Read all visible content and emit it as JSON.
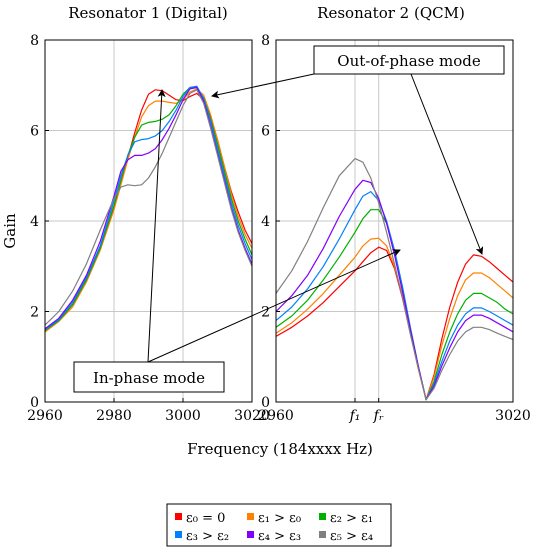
{
  "figure": {
    "ylabel": "Gain",
    "xlabel": "Frequency (184xxxx Hz)",
    "annotations": {
      "in_phase": "In-phase mode",
      "out_of_phase": "Out-of-phase mode"
    }
  },
  "legend": {
    "placement": "bottom-center",
    "entries": [
      {
        "label": "ε₀ = 0",
        "color": "#ff0000"
      },
      {
        "label": "ε₁ > ε₀",
        "color": "#ff8000"
      },
      {
        "label": "ε₂ > ε₁",
        "color": "#00b000"
      },
      {
        "label": "ε₃ > ε₂",
        "color": "#0080ff"
      },
      {
        "label": "ε₄ > ε₃",
        "color": "#8000ff"
      },
      {
        "label": "ε₅ > ε₄",
        "color": "#808080"
      }
    ]
  },
  "chart_data": [
    {
      "type": "line",
      "title": "Resonator 1 (Digital)",
      "xlim": [
        2960,
        3020
      ],
      "ylim": [
        0,
        8
      ],
      "grid": true,
      "xticks": [
        2960,
        2980,
        3000,
        3020
      ],
      "xtick_labels": [
        "2960",
        "2980",
        "3000",
        "3020"
      ],
      "yticks": [
        0,
        2,
        4,
        6,
        8
      ],
      "ytick_labels": [
        "0",
        "2",
        "4",
        "6",
        "8"
      ],
      "x": [
        2960,
        2964,
        2968,
        2972,
        2976,
        2980,
        2982,
        2984,
        2986,
        2988,
        2990,
        2992,
        2994,
        2996,
        2998,
        3000,
        3002,
        3004,
        3006,
        3008,
        3010,
        3012,
        3014,
        3016,
        3018,
        3020
      ],
      "series": [
        {
          "values": [
            1.55,
            1.8,
            2.15,
            2.7,
            3.4,
            4.3,
            4.85,
            5.4,
            5.95,
            6.45,
            6.8,
            6.9,
            6.88,
            6.78,
            6.68,
            6.66,
            6.75,
            6.82,
            6.68,
            6.3,
            5.8,
            5.2,
            4.65,
            4.2,
            3.8,
            3.5
          ]
        },
        {
          "values": [
            1.55,
            1.78,
            2.1,
            2.65,
            3.35,
            4.25,
            4.8,
            5.35,
            5.85,
            6.3,
            6.55,
            6.65,
            6.65,
            6.62,
            6.6,
            6.68,
            6.85,
            6.92,
            6.78,
            6.35,
            5.8,
            5.2,
            4.6,
            4.1,
            3.7,
            3.4
          ]
        },
        {
          "values": [
            1.58,
            1.8,
            2.15,
            2.7,
            3.4,
            4.35,
            4.9,
            5.45,
            5.85,
            6.12,
            6.18,
            6.2,
            6.25,
            6.35,
            6.55,
            6.8,
            6.95,
            6.95,
            6.72,
            6.25,
            5.7,
            5.1,
            4.5,
            4.0,
            3.6,
            3.25
          ]
        },
        {
          "values": [
            1.6,
            1.82,
            2.2,
            2.75,
            3.45,
            4.45,
            5.0,
            5.45,
            5.75,
            5.8,
            5.82,
            5.88,
            6.0,
            6.2,
            6.45,
            6.75,
            6.95,
            6.98,
            6.7,
            6.2,
            5.6,
            5.0,
            4.4,
            3.9,
            3.5,
            3.15
          ]
        },
        {
          "values": [
            1.62,
            1.85,
            2.25,
            2.8,
            3.55,
            4.55,
            5.1,
            5.35,
            5.45,
            5.45,
            5.5,
            5.6,
            5.8,
            6.05,
            6.35,
            6.68,
            6.92,
            6.95,
            6.65,
            6.1,
            5.5,
            4.9,
            4.3,
            3.8,
            3.4,
            3.05
          ]
        },
        {
          "values": [
            1.7,
            2.0,
            2.45,
            3.05,
            3.8,
            4.5,
            4.75,
            4.8,
            4.78,
            4.8,
            4.95,
            5.2,
            5.5,
            5.85,
            6.2,
            6.55,
            6.82,
            6.9,
            6.6,
            6.05,
            5.45,
            4.85,
            4.25,
            3.75,
            3.35,
            3.0
          ]
        }
      ]
    },
    {
      "type": "line",
      "title": "Resonator 2 (QCM)",
      "xlim": [
        2960,
        3020
      ],
      "ylim": [
        0,
        8
      ],
      "grid": true,
      "xticks": [
        2960,
        2980,
        2986,
        3020
      ],
      "xtick_labels": [
        "2960",
        "f₁",
        "fᵣ",
        "3020"
      ],
      "yticks": [
        0,
        2,
        4,
        6,
        8
      ],
      "ytick_labels": [
        "0",
        "2",
        "4",
        "6",
        "8"
      ],
      "x": [
        2960,
        2964,
        2968,
        2972,
        2976,
        2980,
        2982,
        2984,
        2986,
        2988,
        2990,
        2992,
        2994,
        2996,
        2998,
        3000,
        3002,
        3004,
        3006,
        3008,
        3010,
        3012,
        3014,
        3016,
        3018,
        3020
      ],
      "series": [
        {
          "values": [
            1.45,
            1.65,
            1.9,
            2.2,
            2.55,
            2.9,
            3.1,
            3.3,
            3.42,
            3.35,
            2.95,
            2.3,
            1.55,
            0.75,
            0.05,
            0.6,
            1.4,
            2.1,
            2.65,
            3.05,
            3.25,
            3.22,
            3.1,
            2.95,
            2.8,
            2.65
          ]
        },
        {
          "values": [
            1.52,
            1.75,
            2.05,
            2.4,
            2.8,
            3.2,
            3.45,
            3.6,
            3.62,
            3.45,
            3.0,
            2.35,
            1.55,
            0.75,
            0.05,
            0.55,
            1.25,
            1.85,
            2.35,
            2.7,
            2.85,
            2.85,
            2.75,
            2.6,
            2.45,
            2.3
          ]
        },
        {
          "values": [
            1.65,
            1.9,
            2.25,
            2.7,
            3.2,
            3.75,
            4.05,
            4.25,
            4.25,
            3.95,
            3.35,
            2.55,
            1.65,
            0.8,
            0.05,
            0.45,
            1.05,
            1.55,
            1.95,
            2.25,
            2.4,
            2.4,
            2.3,
            2.2,
            2.05,
            1.95
          ]
        },
        {
          "values": [
            1.8,
            2.1,
            2.5,
            3.0,
            3.6,
            4.25,
            4.55,
            4.65,
            4.45,
            4.0,
            3.35,
            2.55,
            1.65,
            0.8,
            0.05,
            0.4,
            0.9,
            1.35,
            1.7,
            1.95,
            2.08,
            2.08,
            2.0,
            1.9,
            1.8,
            1.7
          ]
        },
        {
          "values": [
            2.0,
            2.35,
            2.8,
            3.4,
            4.1,
            4.7,
            4.9,
            4.85,
            4.5,
            3.95,
            3.25,
            2.45,
            1.6,
            0.8,
            0.05,
            0.35,
            0.8,
            1.2,
            1.55,
            1.8,
            1.92,
            1.92,
            1.85,
            1.75,
            1.65,
            1.55
          ]
        },
        {
          "values": [
            2.4,
            2.9,
            3.55,
            4.3,
            5.0,
            5.38,
            5.3,
            4.95,
            4.4,
            3.75,
            3.05,
            2.3,
            1.5,
            0.75,
            0.05,
            0.3,
            0.7,
            1.05,
            1.35,
            1.55,
            1.65,
            1.65,
            1.6,
            1.52,
            1.45,
            1.38
          ]
        }
      ]
    }
  ]
}
